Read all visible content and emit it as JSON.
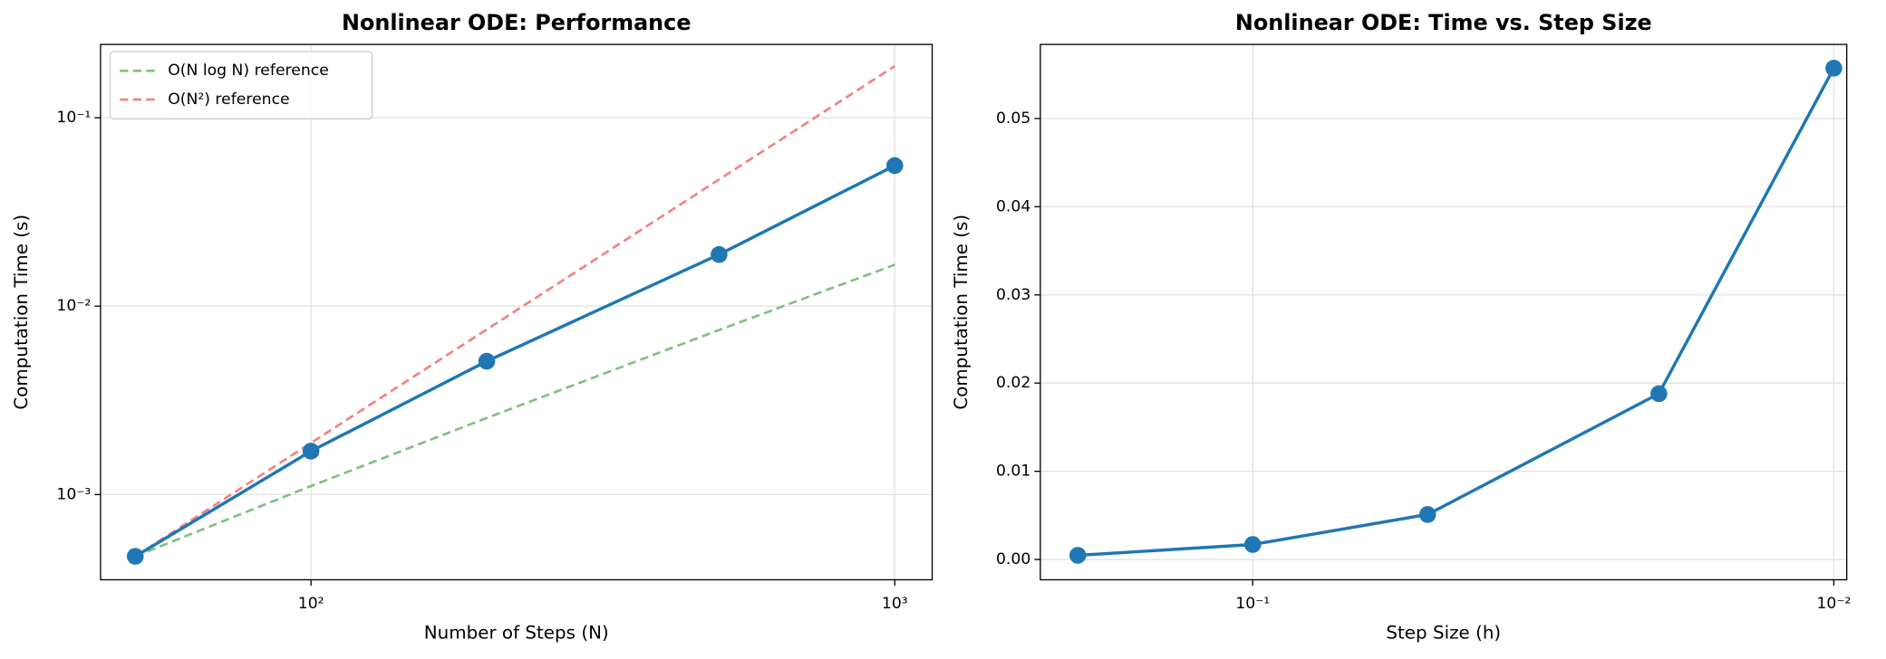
{
  "chart_data": [
    {
      "type": "line",
      "title": "Nonlinear ODE: Performance",
      "x_label": "Number of Steps (N)",
      "y_label": "Computation Time (s)",
      "xscale": "log",
      "yscale": "log",
      "grid": true,
      "legend": "upper left",
      "x": [
        50,
        100,
        200,
        500,
        1000
      ],
      "xlim": [
        43.6,
        1159
      ],
      "ylim": [
        0.000353,
        0.245
      ],
      "xticks": [
        {
          "value": 100,
          "label": "10²"
        },
        {
          "value": 1000,
          "label": "10³"
        }
      ],
      "yticks": [
        {
          "value": 0.001,
          "label": "10⁻³"
        },
        {
          "value": 0.01,
          "label": "10⁻²"
        },
        {
          "value": 0.1,
          "label": "10⁻¹"
        }
      ],
      "series": [
        {
          "color": "#1f77b4",
          "marker": "o",
          "linestyle": "solid",
          "values": [
            0.00047,
            0.0017,
            0.0051,
            0.0188,
            0.0557
          ]
        },
        {
          "name": "O(N log N) reference",
          "color": "#80c080",
          "linestyle": "dashed",
          "values": [
            0.00047,
            0.00111,
            0.00255,
            0.00747,
            0.0166
          ]
        },
        {
          "name": "O(N²) reference",
          "color": "#f58080",
          "linestyle": "dashed",
          "values": [
            0.00047,
            0.00188,
            0.00752,
            0.047,
            0.188
          ]
        }
      ]
    },
    {
      "type": "line",
      "title": "Nonlinear ODE: Time vs. Step Size",
      "x_label": "Step Size (h)",
      "y_label": "Computation Time (s)",
      "xscale": "log",
      "yscale": "linear",
      "grid": true,
      "x": [
        0.2,
        0.1,
        0.05,
        0.02,
        0.01
      ],
      "xlim": [
        0.232,
        0.0095
      ],
      "ylim": [
        -0.0023,
        0.0584
      ],
      "xticks": [
        {
          "value": 0.1,
          "label": "10⁻¹"
        },
        {
          "value": 0.01,
          "label": "10⁻²"
        }
      ],
      "yticks": [
        {
          "value": 0,
          "label": "0.00"
        },
        {
          "value": 0.01,
          "label": "0.01"
        },
        {
          "value": 0.02,
          "label": "0.02"
        },
        {
          "value": 0.03,
          "label": "0.03"
        },
        {
          "value": 0.04,
          "label": "0.04"
        },
        {
          "value": 0.05,
          "label": "0.05"
        }
      ],
      "series": [
        {
          "color": "#1f77b4",
          "marker": "o",
          "linestyle": "solid",
          "values": [
            0.00047,
            0.0017,
            0.0051,
            0.0188,
            0.0557
          ]
        }
      ]
    }
  ]
}
